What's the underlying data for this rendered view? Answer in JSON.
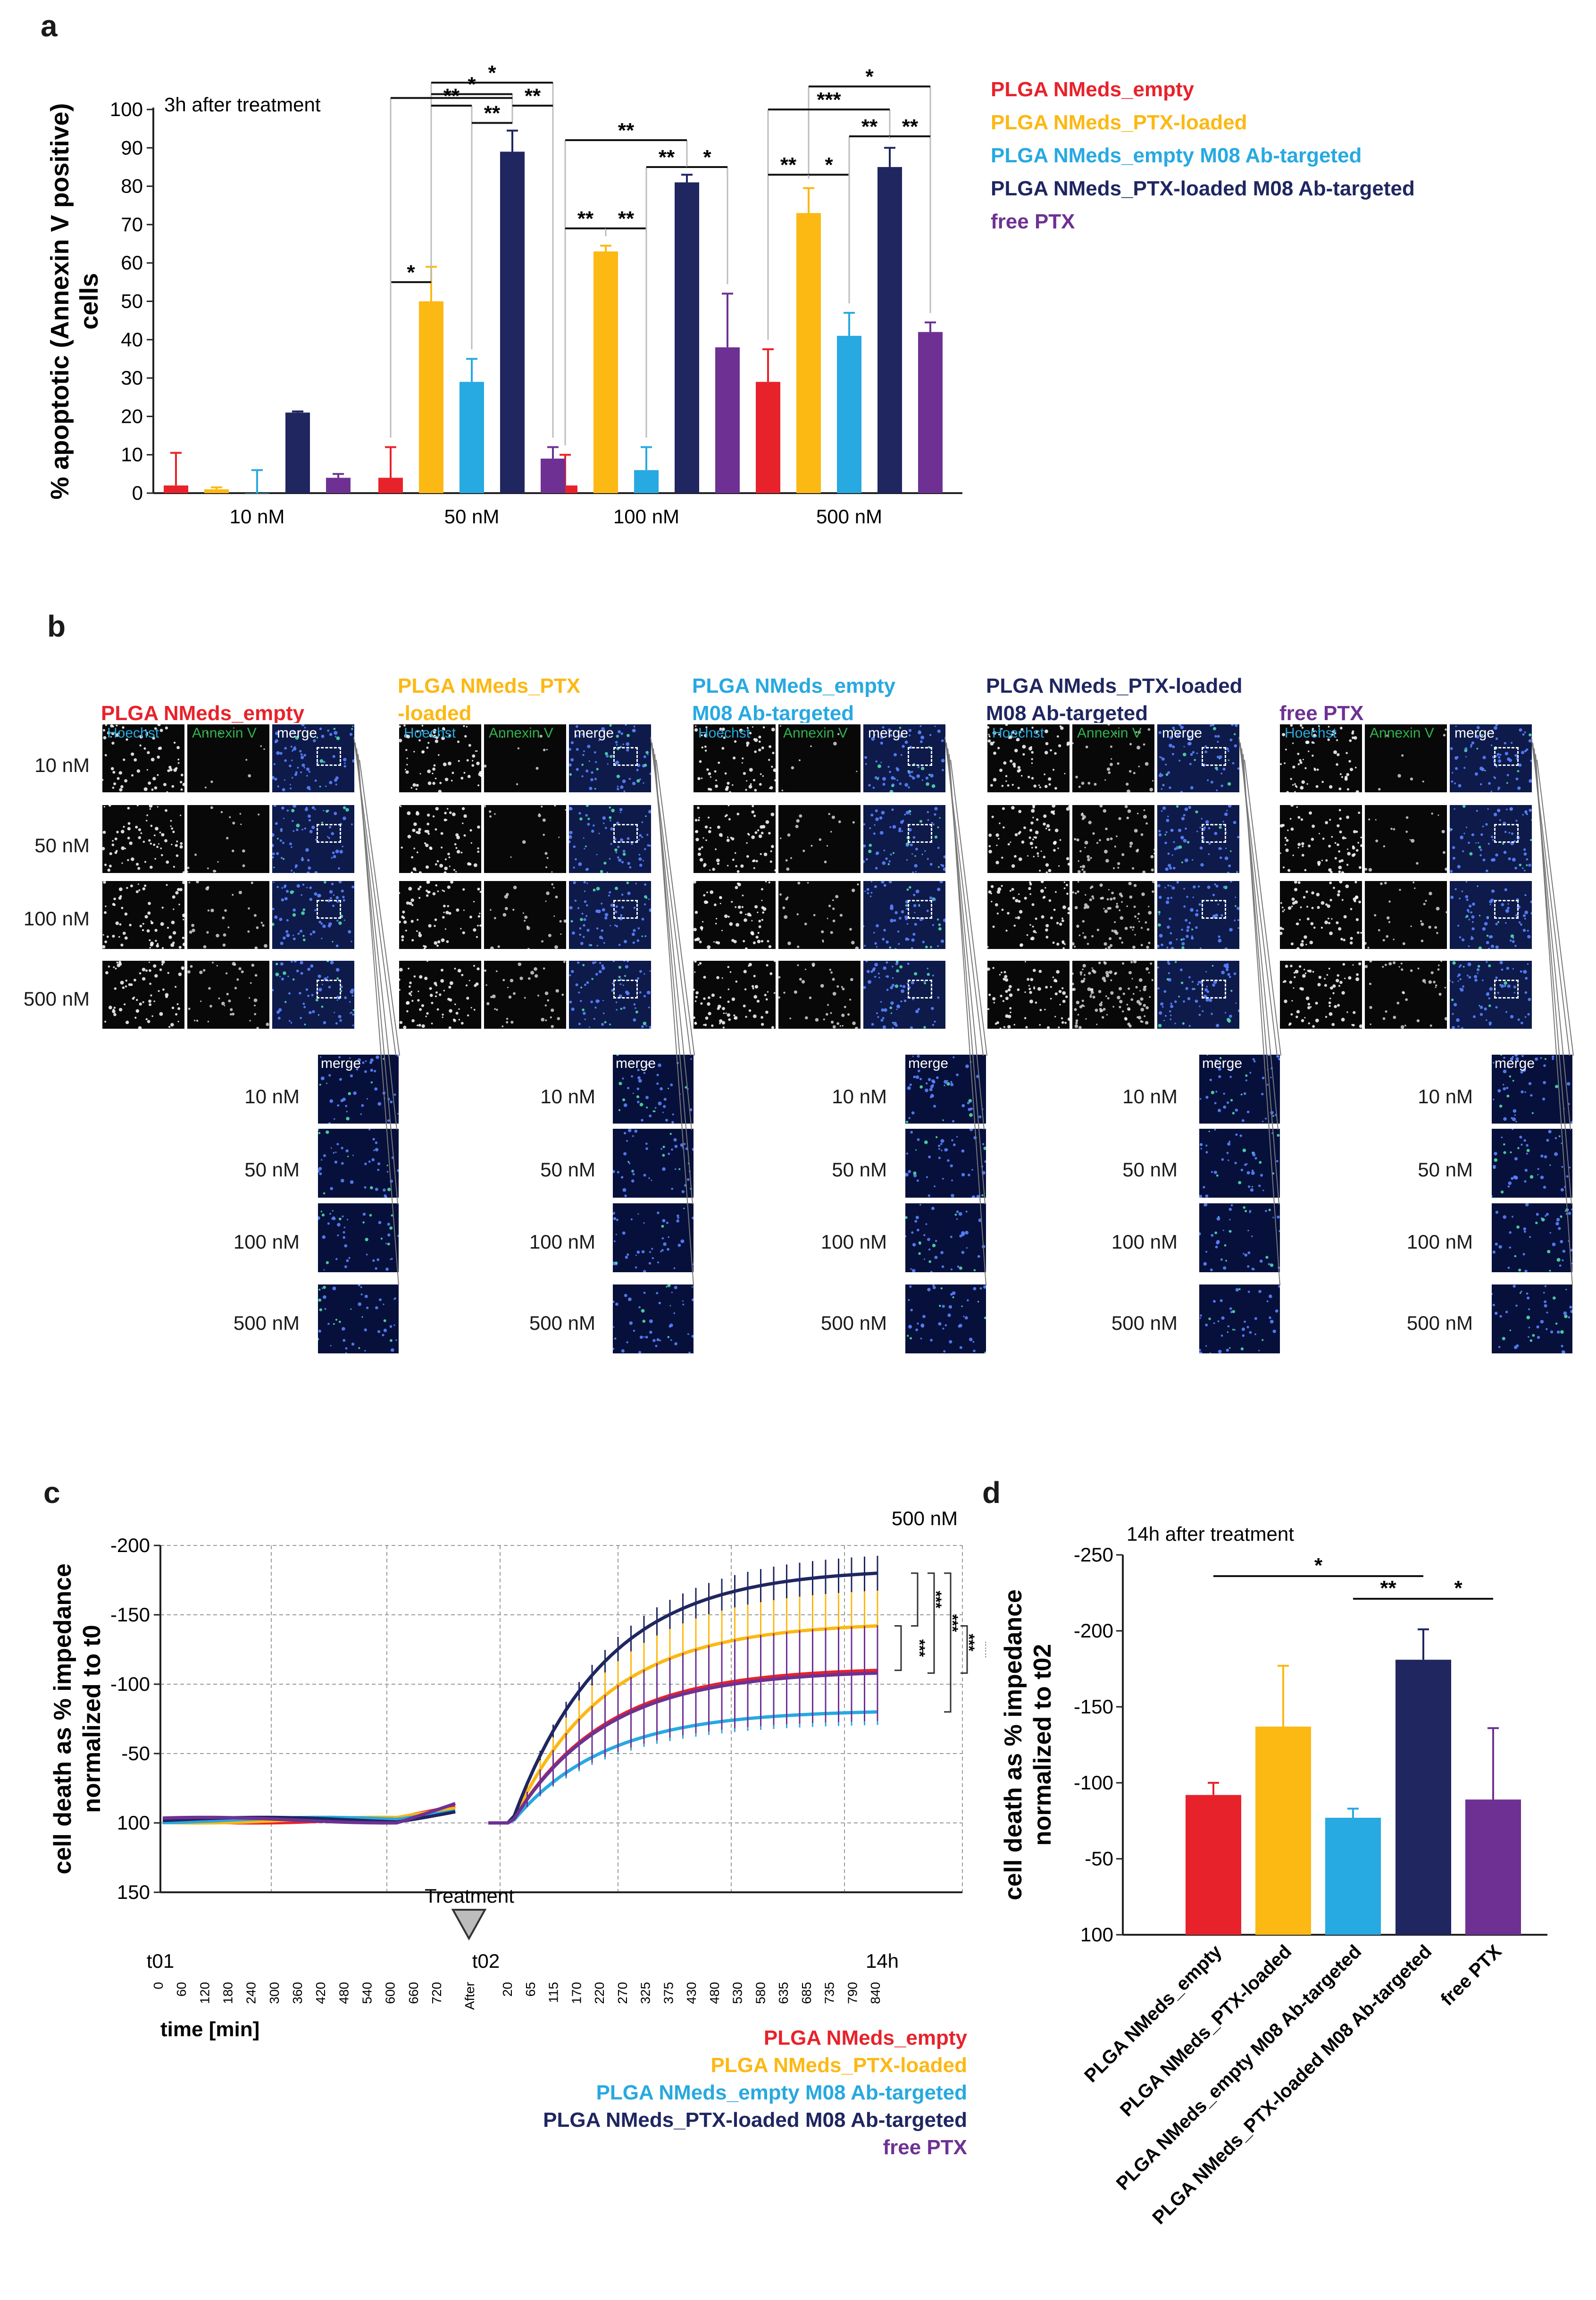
{
  "panels": {
    "a": "a",
    "b": "b",
    "c": "c",
    "d": "d"
  },
  "colors": {
    "empty": "#e8222b",
    "ptx": "#fcb813",
    "ab_empty": "#27a9e1",
    "ab_ptx": "#1f2660",
    "free": "#6e3193"
  },
  "legend": {
    "empty": "PLGA NMeds_empty",
    "ptx": "PLGA NMeds_PTX-loaded",
    "ab_empty": "PLGA NMeds_empty M08 Ab-targeted",
    "ab_ptx": "PLGA NMeds_PTX-loaded  M08 Ab-targeted",
    "free": "free PTX"
  },
  "chart_data": [
    {
      "type": "bar",
      "panel": "a",
      "annotation": "3h after treatment",
      "ylabel_line1": "% apoptotic (Annexin V positive)",
      "ylabel_line2": "cells",
      "ylim": [
        0,
        100
      ],
      "yticks": [
        0,
        10,
        20,
        30,
        40,
        50,
        60,
        70,
        80,
        90,
        100
      ],
      "categories": [
        "10 nM",
        "50 nM",
        "100 nM",
        "500 nM"
      ],
      "series": [
        {
          "name": "PLGA NMeds_empty",
          "color": "#e8222b",
          "values": [
            2,
            4,
            2,
            29
          ],
          "err": [
            8.5,
            8,
            8,
            8.5
          ]
        },
        {
          "name": "PLGA NMeds_PTX-loaded",
          "color": "#fcb813",
          "values": [
            1,
            50,
            63,
            73
          ],
          "err": [
            0.5,
            9,
            1.5,
            6.5
          ]
        },
        {
          "name": "PLGA NMeds_empty M08 Ab-targeted",
          "color": "#27a9e1",
          "values": [
            0,
            29,
            6,
            41
          ],
          "err": [
            6,
            6,
            6,
            6
          ]
        },
        {
          "name": "PLGA NMeds_PTX-loaded  M08 Ab-targeted",
          "color": "#1f2660",
          "values": [
            21,
            89,
            81,
            85
          ],
          "err": [
            0.3,
            5.5,
            2,
            5
          ]
        },
        {
          "name": "free PTX",
          "color": "#6e3193",
          "values": [
            4,
            9,
            38,
            42
          ],
          "err": [
            1,
            3,
            14,
            2.5
          ]
        }
      ],
      "significance": [
        {
          "group": 1,
          "from": 0,
          "to": 1,
          "level": 55,
          "stars": "*"
        },
        {
          "group": 1,
          "from": 1,
          "to": 4,
          "level": 107,
          "stars": "*"
        },
        {
          "group": 1,
          "from": 1,
          "to": 3,
          "level": 104,
          "stars": "*"
        },
        {
          "group": 1,
          "from": 1,
          "to": 2,
          "level": 101,
          "stars": "**"
        },
        {
          "group": 1,
          "from": 0,
          "to": 3,
          "level": 103,
          "stars": ""
        },
        {
          "group": 1,
          "from": 2,
          "to": 3,
          "level": 96.5,
          "stars": "**"
        },
        {
          "group": 1,
          "from": 3,
          "to": 4,
          "level": 101,
          "stars": "**"
        },
        {
          "group": 2,
          "from": 0,
          "to": 3,
          "level": 92,
          "stars": "**"
        },
        {
          "group": 2,
          "from": 0,
          "to": 1,
          "level": 69,
          "stars": "**"
        },
        {
          "group": 2,
          "from": 1,
          "to": 2,
          "level": 69,
          "stars": "**"
        },
        {
          "group": 2,
          "from": 2,
          "to": 3,
          "level": 85,
          "stars": "**"
        },
        {
          "group": 2,
          "from": 3,
          "to": 4,
          "level": 85,
          "stars": "*"
        },
        {
          "group": 3,
          "from": 1,
          "to": 4,
          "level": 106,
          "stars": "*"
        },
        {
          "group": 3,
          "from": 0,
          "to": 3,
          "level": 100,
          "stars": "***"
        },
        {
          "group": 3,
          "from": 0,
          "to": 1,
          "level": 83,
          "stars": "**"
        },
        {
          "group": 3,
          "from": 1,
          "to": 2,
          "level": 83,
          "stars": "*"
        },
        {
          "group": 3,
          "from": 2,
          "to": 3,
          "level": 93,
          "stars": "**"
        },
        {
          "group": 3,
          "from": 3,
          "to": 4,
          "level": 93,
          "stars": "**"
        }
      ]
    },
    {
      "type": "line",
      "panel": "c",
      "annotation": "500 nM",
      "treatment_label": "Treatment",
      "ylabel_line1": "cell death as % impedance",
      "ylabel_line2": "normalized to t0",
      "xlabel": "time [min]",
      "yticks": [
        "-200",
        "-150",
        "-100",
        "-50",
        "100",
        "150"
      ],
      "ytick_values": [
        -200,
        -150,
        -100,
        -50,
        100,
        150
      ],
      "phase_labels": [
        "t01",
        "t02",
        "14h"
      ],
      "xticks_pre": [
        "0",
        "60",
        "120",
        "180",
        "240",
        "300",
        "360",
        "420",
        "480",
        "540",
        "600",
        "660",
        "720"
      ],
      "xtick_after": "After",
      "xticks_post": [
        "20",
        "65",
        "115",
        "170",
        "220",
        "270",
        "325",
        "375",
        "430",
        "480",
        "530",
        "580",
        "635",
        "685",
        "735",
        "790",
        "840"
      ],
      "series": [
        {
          "name": "PLGA NMeds_empty",
          "color": "#e8222b",
          "end": -110,
          "end_err": 5
        },
        {
          "name": "PLGA NMeds_PTX-loaded",
          "color": "#fcb813",
          "end": -142,
          "end_err": 20
        },
        {
          "name": "PLGA NMeds_empty M08 Ab-targeted",
          "color": "#27a9e1",
          "end": -80,
          "end_err": 6
        },
        {
          "name": "PLGA NMeds_PTX-loaded  M08 Ab-targeted",
          "color": "#1f2660",
          "end": -180,
          "end_err": 8
        },
        {
          "name": "free PTX",
          "color": "#6e3193",
          "end": -108,
          "end_err": 22
        }
      ],
      "significance": [
        "***",
        "***",
        "***",
        "***",
        "***"
      ]
    },
    {
      "type": "bar",
      "panel": "d",
      "annotation": "14h after treatment",
      "ylabel_line1": "cell death as % impedance",
      "ylabel_line2": "normalized to t02",
      "yticks": [
        "-250",
        "-200",
        "-150",
        "-100",
        "-50",
        "100"
      ],
      "ytick_values": [
        -250,
        -200,
        -150,
        -100,
        -50,
        100
      ],
      "categories": [
        "PLGA NMeds_empty",
        "PLGA NMeds_PTX-loaded",
        "PLGA NMeds_empty M08 Ab-targeted",
        "PLGA NMeds_PTX-loaded  M08 Ab-targeted",
        "free PTX"
      ],
      "values": [
        -92,
        -137,
        -77,
        -181,
        -89
      ],
      "err": [
        8,
        40,
        6,
        20,
        47
      ],
      "colors": [
        "#e8222b",
        "#fcb813",
        "#27a9e1",
        "#1f2660",
        "#6e3193"
      ],
      "significance": [
        {
          "from": 0,
          "to": 3,
          "stars": "*"
        },
        {
          "from": 2,
          "to": 3,
          "stars": "**"
        },
        {
          "from": 3,
          "to": 4,
          "stars": "*"
        }
      ]
    }
  ],
  "panel_b": {
    "columns": [
      {
        "title_line1": "PLGA NMeds_empty",
        "title_line2": "",
        "color": "#e8222b"
      },
      {
        "title_line1": "PLGA NMeds_PTX",
        "title_line2": "-loaded",
        "color": "#fcb813"
      },
      {
        "title_line1": "PLGA NMeds_empty",
        "title_line2": "M08 Ab-targeted",
        "color": "#27a9e1"
      },
      {
        "title_line1": "PLGA NMeds_PTX-loaded",
        "title_line2": "M08 Ab-targeted",
        "color": "#1f2660"
      },
      {
        "title_line1": "free PTX",
        "title_line2": "",
        "color": "#6e3193"
      }
    ],
    "channels": [
      "Hoechst",
      "Annexin V",
      "merge"
    ],
    "channel_colors": [
      "#27a9e1",
      "#2fb34a",
      "#ffffff"
    ],
    "rows": [
      "10 nM",
      "50 nM",
      "100 nM",
      "500 nM"
    ],
    "zoom_label": "merge"
  }
}
